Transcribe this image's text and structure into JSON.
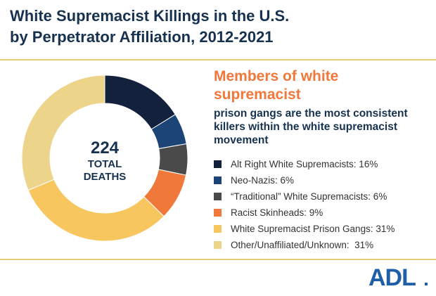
{
  "title": {
    "line1": "White Supremacist Killings in the U.S.",
    "line2": "by Perpetrator Affiliation, 2012-2021"
  },
  "headline": {
    "orange": "Members of white supremacist",
    "blue": "prison gangs are the most consistent killers within the white supremacist movement"
  },
  "center": {
    "total": "224",
    "line1": "TOTAL",
    "line2": "DEATHS"
  },
  "logo": {
    "text": "ADL"
  },
  "colors": {
    "navy": "#17324f",
    "orange_accent": "#f0783a",
    "rule": "#e9cd74",
    "logo_blue": "#1f5fa8"
  },
  "chart_data": {
    "type": "pie",
    "variant": "donut",
    "slices": [
      {
        "label": "Alt Right White Supremacists: 16%",
        "value": 16,
        "color": "#13213d"
      },
      {
        "label": "Neo-Nazis: 6%",
        "value": 6,
        "color": "#1c4476"
      },
      {
        "label": "“Traditional” White Supremacists: 6%",
        "value": 6,
        "color": "#4a4a4a"
      },
      {
        "label": "Racist Skinheads: 9%",
        "value": 9,
        "color": "#f0783a"
      },
      {
        "label": "White Supremacist Prison Gangs: 31%",
        "value": 31,
        "color": "#f7c65f"
      },
      {
        "label": "Other/Unaffiliated/Unknown:  31%",
        "value": 31,
        "color": "#ecd48b"
      }
    ]
  }
}
